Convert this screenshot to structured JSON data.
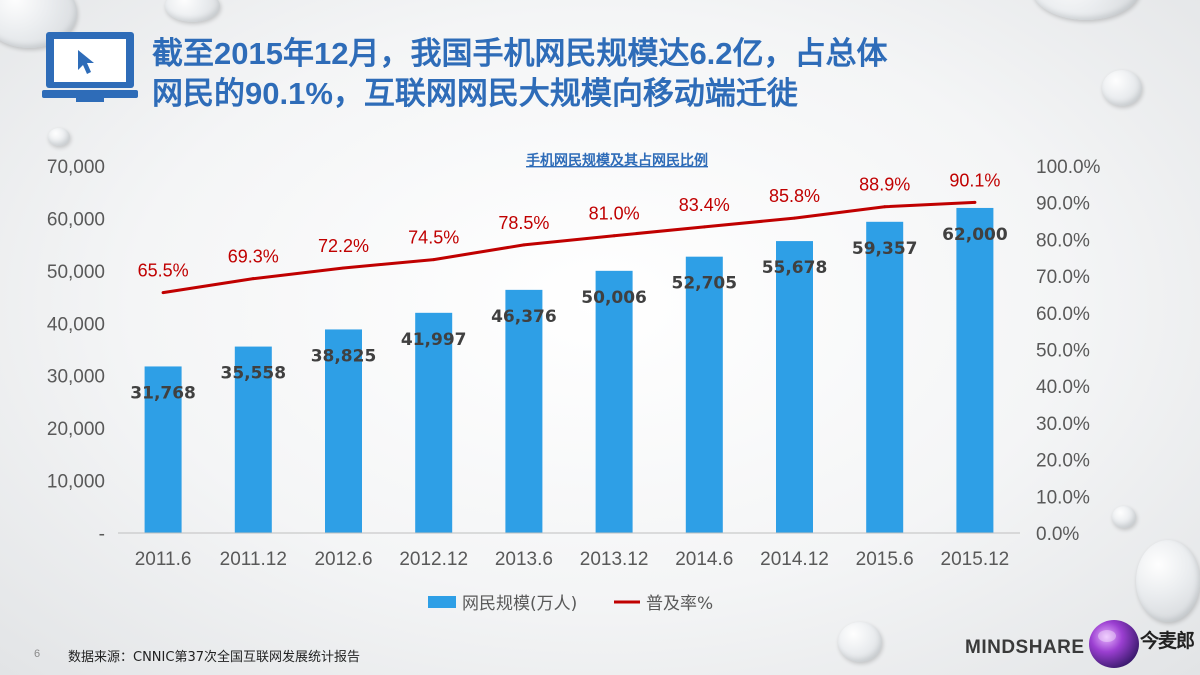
{
  "slide": {
    "title_line1": "截至2015年12月，我国手机网民规模达6.2亿，占总体",
    "title_line2": "网民的90.1%，互联网网民大规模向移动端迁徙",
    "page_number": "6",
    "source": "数据来源：CNNIC第37次全国互联网发展统计报告",
    "brand_logo": "MINDSHARE",
    "brand_text": "今麦郎",
    "accent_color": "#2e6cb8"
  },
  "chart_data": {
    "type": "bar",
    "title": "手机网民规模及其占网民比例",
    "categories": [
      "2011.6",
      "2011.12",
      "2012.6",
      "2012.12",
      "2013.6",
      "2013.12",
      "2014.6",
      "2014.12",
      "2015.6",
      "2015.12"
    ],
    "series": [
      {
        "name": "网民规模(万人)",
        "type": "bar",
        "axis": "left",
        "color": "#2e9fe6",
        "values": [
          31768,
          35558,
          38825,
          41997,
          46376,
          50006,
          52705,
          55678,
          59357,
          62000
        ],
        "labels": [
          "31,768",
          "35,558",
          "38,825",
          "41,997",
          "46,376",
          "50,006",
          "52,705",
          "55,678",
          "59,357",
          "62,000"
        ]
      },
      {
        "name": "普及率%",
        "type": "line",
        "axis": "right",
        "color": "#c00000",
        "values": [
          65.5,
          69.3,
          72.2,
          74.5,
          78.5,
          81.0,
          83.4,
          85.8,
          88.9,
          90.1
        ],
        "labels": [
          "65.5%",
          "69.3%",
          "72.2%",
          "74.5%",
          "78.5%",
          "81.0%",
          "83.4%",
          "85.8%",
          "88.9%",
          "90.1%"
        ]
      }
    ],
    "y_left": {
      "min": 0,
      "max": 70000,
      "ticks": [
        0,
        10000,
        20000,
        30000,
        40000,
        50000,
        60000,
        70000
      ],
      "tick_labels": [
        "-",
        "10,000",
        "20,000",
        "30,000",
        "40,000",
        "50,000",
        "60,000",
        "70,000"
      ]
    },
    "y_right": {
      "min": 0,
      "max": 100,
      "ticks": [
        0,
        10,
        20,
        30,
        40,
        50,
        60,
        70,
        80,
        90,
        100
      ],
      "tick_labels": [
        "0.0%",
        "10.0%",
        "20.0%",
        "30.0%",
        "40.0%",
        "50.0%",
        "60.0%",
        "70.0%",
        "80.0%",
        "90.0%",
        "100.0%"
      ]
    },
    "grid": false,
    "legend": "bottom-center"
  }
}
